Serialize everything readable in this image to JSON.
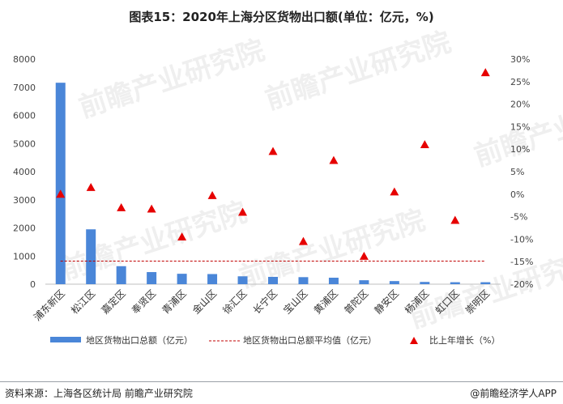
{
  "title": "图表15：2020年上海分区货物出口额(单位：亿元，%)",
  "source": "资料来源：上海各区统计局 前瞻产业研究院",
  "brand": "@前瞻经济学人APP",
  "watermark": "前瞻产业研究院",
  "colors": {
    "bar": "#4a86d8",
    "avg_line": "#c00000",
    "triangle": "#e60000"
  },
  "chart_data": {
    "type": "bar",
    "categories": [
      "浦东新区",
      "松江区",
      "嘉定区",
      "奉贤区",
      "青浦区",
      "金山区",
      "徐汇区",
      "长宁区",
      "宝山区",
      "黄浦区",
      "普陀区",
      "静安区",
      "杨浦区",
      "虹口区",
      "崇明区"
    ],
    "series": [
      {
        "name": "地区货物出口总额（亿元）",
        "type": "bar",
        "axis": "left",
        "values": [
          7160,
          1950,
          640,
          430,
          370,
          360,
          280,
          260,
          250,
          230,
          140,
          110,
          80,
          70,
          70
        ]
      },
      {
        "name": "地区货物出口总额平均值（亿元）",
        "type": "line-dashed",
        "axis": "left",
        "values": [
          820,
          820,
          820,
          820,
          820,
          820,
          820,
          820,
          820,
          820,
          820,
          820,
          820,
          820,
          820
        ]
      },
      {
        "name": "比上年增长（%）",
        "type": "scatter-triangle",
        "axis": "right",
        "values": [
          0.0,
          1.5,
          -3.0,
          -3.3,
          -9.5,
          -0.3,
          -4.0,
          9.5,
          -10.5,
          7.5,
          -13.8,
          0.5,
          11.0,
          -5.8,
          27.0
        ]
      }
    ],
    "y_left": {
      "min": 0,
      "max": 8000,
      "ticks": [
        "0",
        "1000",
        "2000",
        "3000",
        "4000",
        "5000",
        "6000",
        "7000",
        "8000"
      ]
    },
    "y_right": {
      "min": -20,
      "max": 30,
      "ticks": [
        "-20%",
        "-15%",
        "-10%",
        "-5%",
        "0%",
        "5%",
        "10%",
        "15%",
        "20%",
        "25%",
        "30%"
      ]
    },
    "legend_position": "bottom",
    "grid": false
  }
}
